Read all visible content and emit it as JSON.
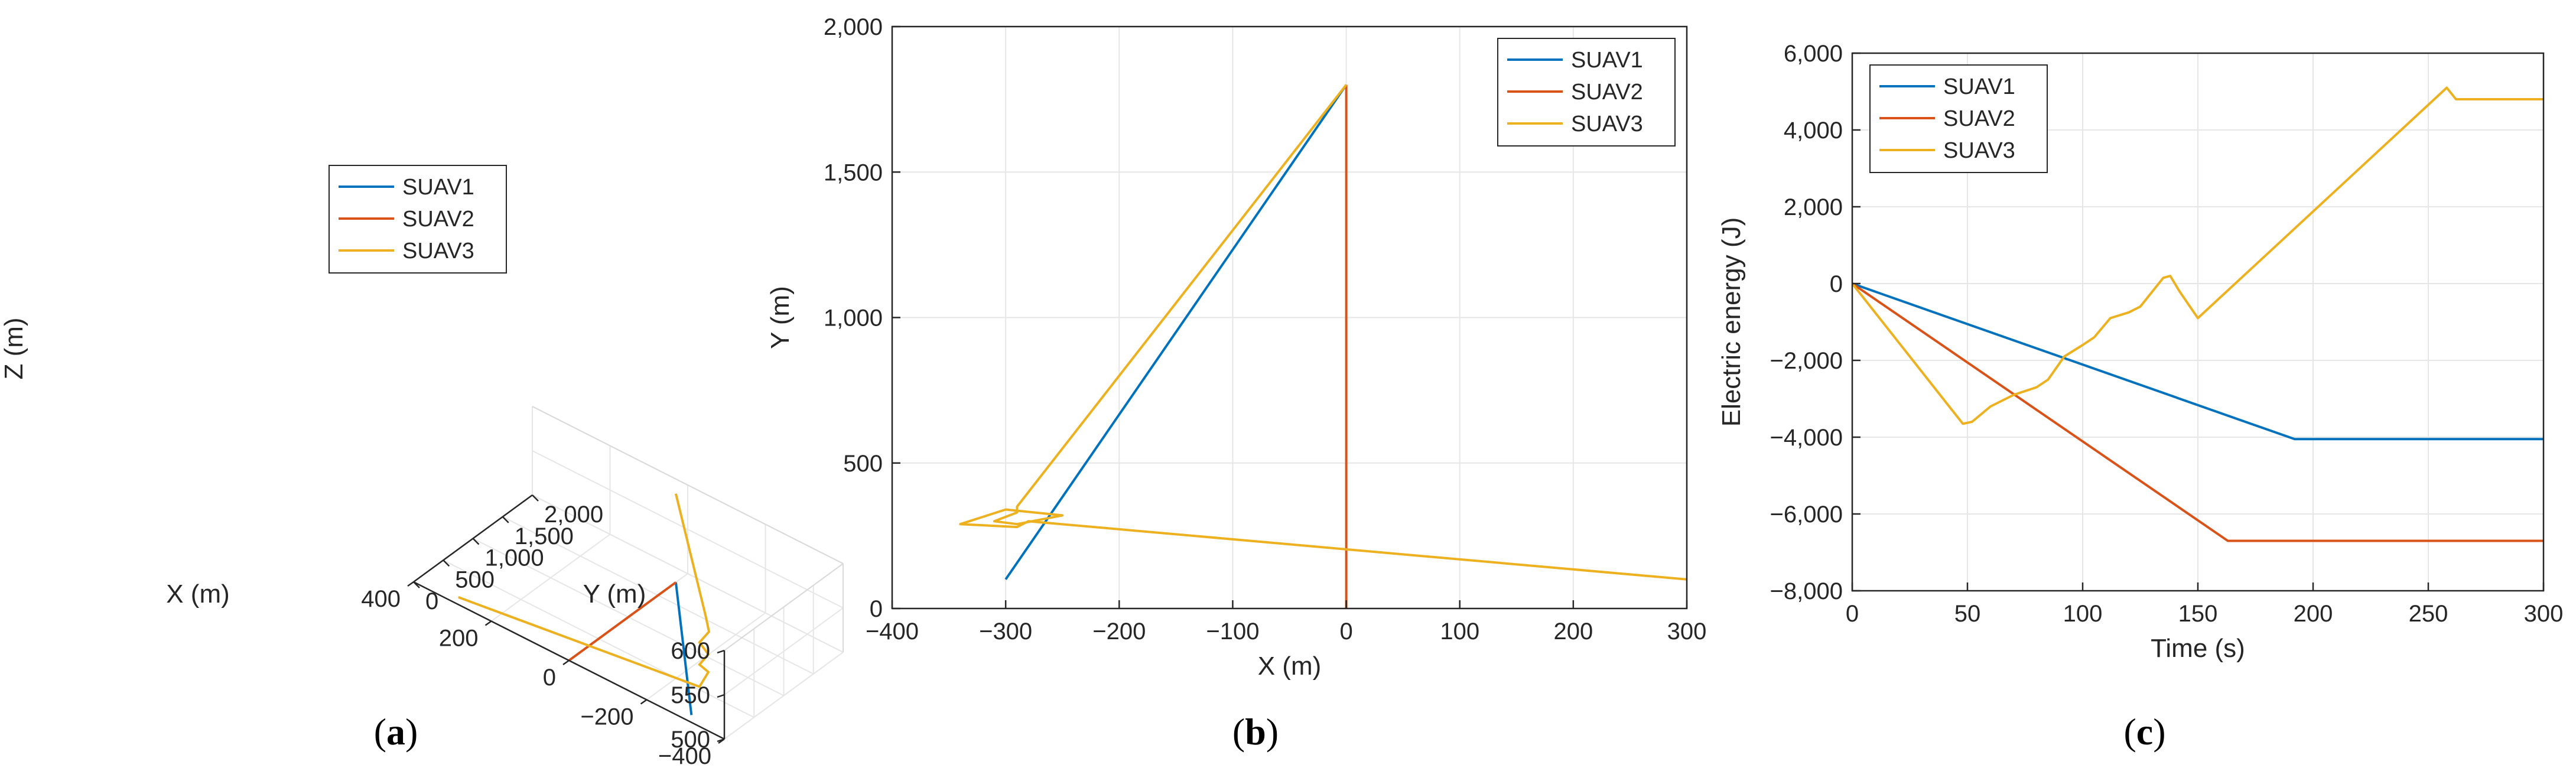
{
  "colors": {
    "SUAV1": "#0072BD",
    "SUAV2": "#D95319",
    "SUAV3": "#EDB120",
    "grid": "#e6e6e6",
    "axis": "#262626"
  },
  "chart_data": [
    {
      "id": "a",
      "caption": "a",
      "type": "line",
      "projection": "3d",
      "xlabel": "X (m)",
      "ylabel": "Y (m)",
      "zlabel": "Z (m)",
      "x_ticks": [
        "−400",
        "−200",
        "0",
        "200",
        "400"
      ],
      "y_ticks": [
        "0",
        "500",
        "1,000",
        "1,500",
        "2,000"
      ],
      "z_ticks": [
        "500",
        "550",
        "600"
      ],
      "xlim": [
        -400,
        400
      ],
      "ylim": [
        0,
        2000
      ],
      "zlim": [
        500,
        600
      ],
      "grid": true,
      "legend_position": "top-center",
      "series": [
        {
          "name": "SUAV1",
          "points": [
            [
              -300,
              100,
              500
            ],
            [
              0,
              1800,
              500
            ]
          ]
        },
        {
          "name": "SUAV2",
          "points": [
            [
              0,
              0,
              500
            ],
            [
              0,
              1800,
              500
            ]
          ]
        },
        {
          "name": "SUAV3",
          "points": [
            [
              300,
              100,
              500
            ],
            [
              -290,
              300,
              520
            ],
            [
              -310,
              320,
              540
            ],
            [
              -290,
              300,
              545
            ],
            [
              -310,
              320,
              560
            ],
            [
              -290,
              300,
              570
            ],
            [
              -310,
              330,
              585
            ],
            [
              -300,
              340,
              600
            ],
            [
              0,
              1800,
              600
            ]
          ]
        }
      ]
    },
    {
      "id": "b",
      "caption": "b",
      "type": "line",
      "xlabel": "X (m)",
      "ylabel": "Y (m)",
      "x_ticks": [
        "−400",
        "−300",
        "−200",
        "−100",
        "0",
        "100",
        "200",
        "300"
      ],
      "y_ticks": [
        "0",
        "500",
        "1,000",
        "1,500",
        "2,000"
      ],
      "xlim": [
        -400,
        300
      ],
      "ylim": [
        0,
        2000
      ],
      "grid": true,
      "legend_position": "top-right",
      "series": [
        {
          "name": "SUAV1",
          "points": [
            [
              -300,
              100
            ],
            [
              0,
              1800
            ]
          ]
        },
        {
          "name": "SUAV2",
          "points": [
            [
              0,
              0
            ],
            [
              0,
              1800
            ]
          ]
        },
        {
          "name": "SUAV3",
          "points": [
            [
              300,
              100
            ],
            [
              -280,
              300
            ],
            [
              -290,
              280
            ],
            [
              -340,
              290
            ],
            [
              -300,
              340
            ],
            [
              -250,
              320
            ],
            [
              -290,
              290
            ],
            [
              -310,
              300
            ],
            [
              -290,
              330
            ],
            [
              -290,
              350
            ],
            [
              0,
              1800
            ]
          ]
        }
      ]
    },
    {
      "id": "c",
      "caption": "c",
      "type": "line",
      "xlabel": "Time (s)",
      "ylabel": "Electric energy (J)",
      "x_ticks": [
        "0",
        "50",
        "100",
        "150",
        "200",
        "250",
        "300"
      ],
      "y_ticks": [
        "−8,000",
        "−6,000",
        "−4,000",
        "−2,000",
        "0",
        "2,000",
        "4,000",
        "6,000"
      ],
      "xlim": [
        0,
        300
      ],
      "ylim": [
        -8000,
        6000
      ],
      "grid": true,
      "legend_position": "top-left",
      "series": [
        {
          "name": "SUAV1",
          "points": [
            [
              0,
              0
            ],
            [
              192,
              -4050
            ],
            [
              300,
              -4050
            ]
          ]
        },
        {
          "name": "SUAV2",
          "points": [
            [
              0,
              0
            ],
            [
              163,
              -6700
            ],
            [
              300,
              -6700
            ]
          ]
        },
        {
          "name": "SUAV3",
          "points": [
            [
              0,
              0
            ],
            [
              48,
              -3650
            ],
            [
              52,
              -3600
            ],
            [
              60,
              -3200
            ],
            [
              70,
              -2900
            ],
            [
              80,
              -2700
            ],
            [
              85,
              -2500
            ],
            [
              92,
              -1900
            ],
            [
              100,
              -1600
            ],
            [
              105,
              -1400
            ],
            [
              112,
              -900
            ],
            [
              120,
              -750
            ],
            [
              125,
              -600
            ],
            [
              135,
              150
            ],
            [
              138,
              200
            ],
            [
              142,
              -200
            ],
            [
              150,
              -900
            ],
            [
              258,
              5100
            ],
            [
              262,
              4800
            ],
            [
              300,
              4800
            ]
          ]
        }
      ]
    }
  ]
}
